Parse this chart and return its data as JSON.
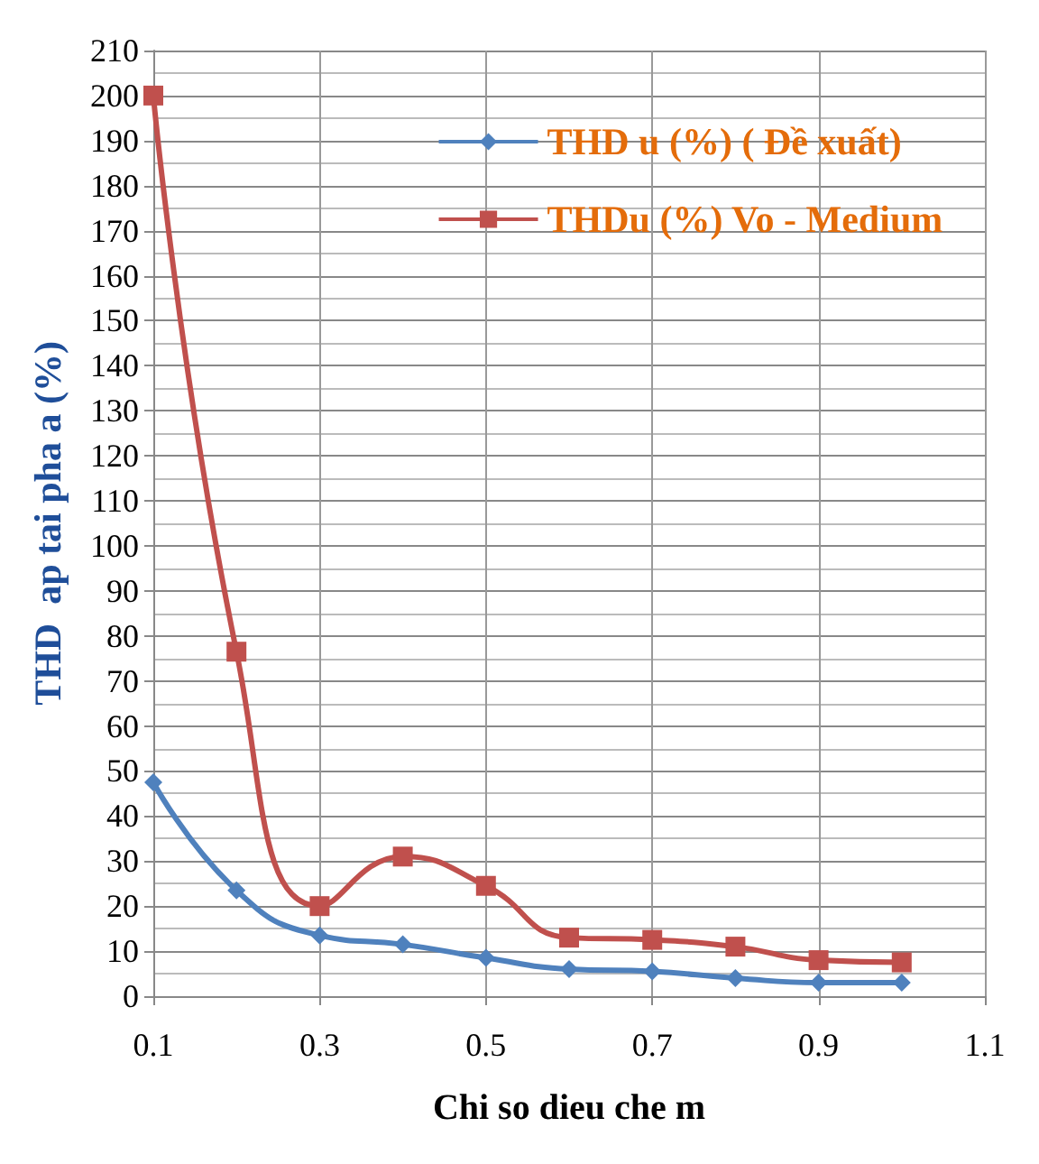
{
  "chart_data": {
    "type": "line",
    "xlabel": "Chi so dieu che m",
    "ylabel": "THD  ap tai pha a (%)",
    "x": [
      0.1,
      0.2,
      0.3,
      0.4,
      0.5,
      0.6,
      0.7,
      0.8,
      0.9,
      1.0
    ],
    "series": [
      {
        "name": "THD u (%) ( Đề xuất)",
        "color": "#4f81bd",
        "marker": "diamond",
        "values": [
          47.5,
          23.5,
          13.5,
          11.5,
          8.5,
          6,
          5.5,
          4,
          3,
          3
        ]
      },
      {
        "name": "THDu (%) Vo - Medium",
        "color": "#c0504d",
        "marker": "square",
        "values": [
          200,
          76.5,
          20,
          31,
          24.5,
          13,
          12.5,
          11,
          8,
          7.5
        ]
      }
    ],
    "xlim": [
      0.1,
      1.1
    ],
    "xticks": [
      0.1,
      0.3,
      0.5,
      0.7,
      0.9,
      1.1
    ],
    "ylim": [
      0,
      210
    ],
    "yticks": [
      0,
      10,
      20,
      30,
      40,
      50,
      60,
      70,
      80,
      90,
      100,
      110,
      120,
      130,
      140,
      150,
      160,
      170,
      180,
      190,
      200,
      210
    ],
    "grid": true,
    "legend": "top right",
    "line_style": "solid"
  }
}
